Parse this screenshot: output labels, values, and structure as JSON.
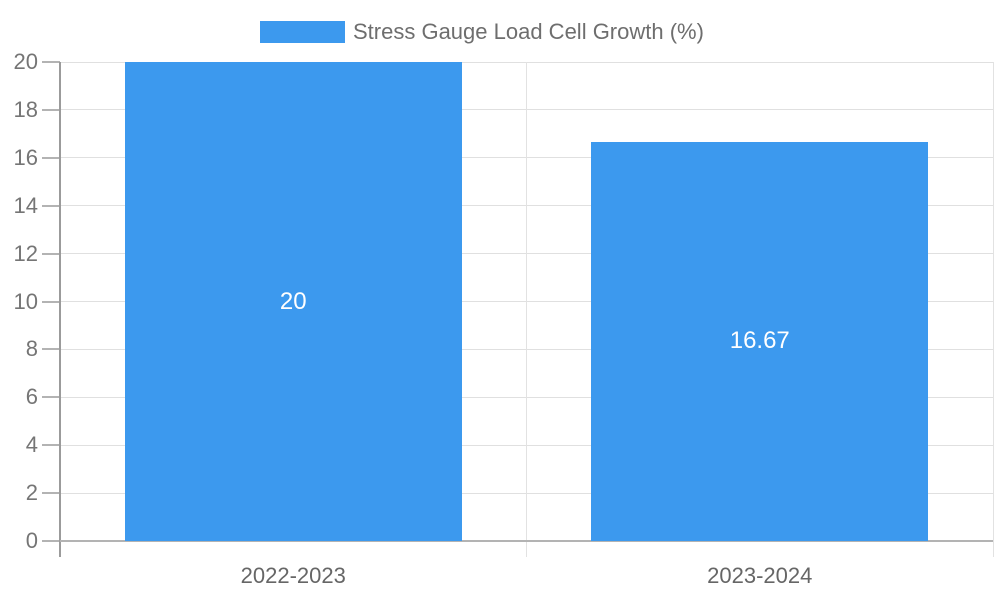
{
  "chart_data": {
    "type": "bar",
    "title": "",
    "categories": [
      "2022-2023",
      "2023-2024"
    ],
    "series": [
      {
        "name": "Stress Gauge Load Cell Growth (%)",
        "values": [
          20,
          16.67
        ],
        "value_labels": [
          "20",
          "16.67"
        ],
        "color": "#3c99ee"
      }
    ],
    "ylabel": "",
    "xlabel": "",
    "ylim": [
      0,
      20
    ],
    "yticks": [
      0,
      2,
      4,
      6,
      8,
      10,
      12,
      14,
      16,
      18,
      20
    ],
    "grid": true,
    "legend_position": "top-center",
    "bar_label_color": "#ffffff"
  },
  "legend": {
    "label": "Stress Gauge Load Cell Growth (%)",
    "swatch_color": "#3c99ee"
  },
  "colors": {
    "bar": "#3c99ee",
    "gridline": "#e0e0e0",
    "y_axis": "#9b9b9b",
    "x_axis": "#b3b3b3",
    "tick_label": "#757575",
    "category_label": "#666666",
    "legend_text": "#6e6e6e",
    "background": "#ffffff"
  }
}
